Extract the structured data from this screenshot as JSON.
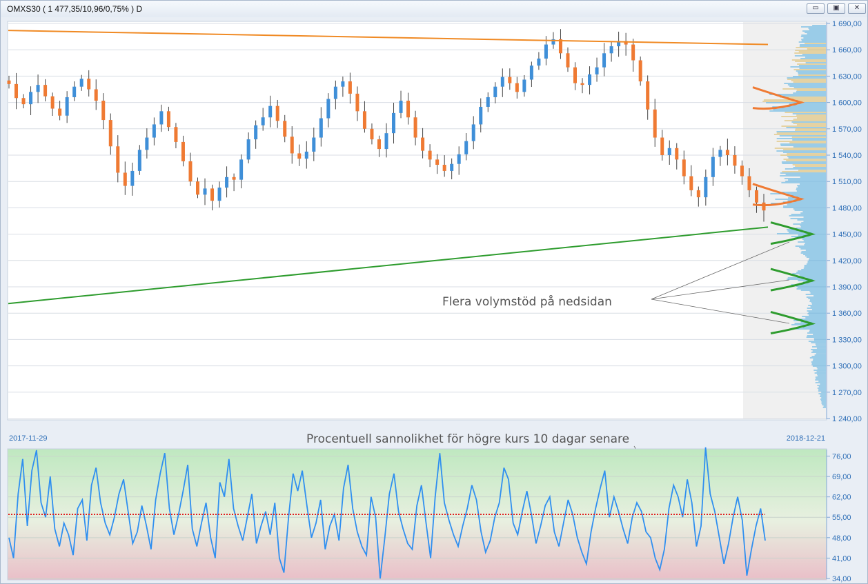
{
  "window": {
    "title": "OMXS30 ( 1 477,35/10,96/0,75% )  D",
    "buttons": [
      {
        "name": "minimize",
        "glyph": "▭"
      },
      {
        "name": "maximize",
        "glyph": "▣"
      },
      {
        "name": "close",
        "glyph": "✕"
      }
    ]
  },
  "colors": {
    "up": "#3f8fd8",
    "down": "#ef7a33",
    "resistance": "#f08a24",
    "support": "#2e9c2e",
    "indicator": "#2f8ff0",
    "threshold": "#e02020",
    "axis": "#2f6fb7"
  },
  "dates": {
    "start": "2017-11-29",
    "end": "2018-12-21"
  },
  "annotations": {
    "volume_support": "Flera volymstöd på nedsidan",
    "probability": "Procentuell sannolikhet för högre kurs 10 dagar senare"
  },
  "chart_data": [
    {
      "type": "candlestick",
      "y_ticks": [
        "1 690,00",
        "1 660,00",
        "1 630,00",
        "1 600,00",
        "1 570,00",
        "1 540,00",
        "1 510,00",
        "1 480,00",
        "1 450,00",
        "1 420,00",
        "1 390,00",
        "1 360,00",
        "1 330,00",
        "1 300,00",
        "1 270,00",
        "1 240,00"
      ],
      "ylim": [
        1240,
        1690
      ],
      "x_range": [
        "2017-11-29",
        "2018-12-21"
      ],
      "grid": true,
      "closes": [
        1621,
        1605,
        1598,
        1612,
        1620,
        1607,
        1593,
        1585,
        1606,
        1618,
        1627,
        1615,
        1602,
        1580,
        1550,
        1520,
        1505,
        1522,
        1546,
        1560,
        1575,
        1590,
        1572,
        1555,
        1533,
        1510,
        1495,
        1502,
        1488,
        1503,
        1515,
        1512,
        1535,
        1558,
        1574,
        1583,
        1596,
        1579,
        1561,
        1542,
        1536,
        1544,
        1560,
        1582,
        1604,
        1618,
        1624,
        1610,
        1590,
        1570,
        1558,
        1547,
        1565,
        1588,
        1602,
        1583,
        1560,
        1545,
        1535,
        1529,
        1522,
        1530,
        1541,
        1556,
        1575,
        1595,
        1606,
        1618,
        1629,
        1622,
        1612,
        1626,
        1642,
        1650,
        1666,
        1672,
        1656,
        1640,
        1622,
        1620,
        1632,
        1640,
        1656,
        1664,
        1670,
        1666,
        1648,
        1624,
        1592,
        1560,
        1540,
        1548,
        1535,
        1516,
        1500,
        1492,
        1515,
        1538,
        1546,
        1540,
        1528,
        1516,
        1500,
        1486,
        1477
      ],
      "resistance_line": {
        "from": 1682,
        "to": 1666
      },
      "support_line": {
        "from": 1371,
        "to": 1458
      },
      "volume_profile": {
        "resistance_nodes": [
          1600,
          1490
        ],
        "support_nodes": [
          1450,
          1397,
          1348
        ]
      }
    },
    {
      "type": "line",
      "y_ticks": [
        "76,00",
        "69,00",
        "62,00",
        "55,00",
        "48,00",
        "41,00",
        "34,00"
      ],
      "ylim": [
        34,
        78
      ],
      "threshold": 56,
      "values": [
        48,
        41,
        63,
        75,
        52,
        71,
        78,
        60,
        55,
        69,
        51,
        45,
        53,
        49,
        42,
        58,
        61,
        47,
        66,
        72,
        60,
        53,
        49,
        55,
        63,
        68,
        57,
        46,
        50,
        59,
        52,
        44,
        61,
        70,
        77,
        58,
        49,
        56,
        64,
        73,
        51,
        45,
        53,
        60,
        48,
        41,
        67,
        62,
        75,
        58,
        52,
        47,
        55,
        63,
        46,
        52,
        57,
        49,
        60,
        41,
        36,
        55,
        70,
        64,
        71,
        59,
        48,
        53,
        61,
        44,
        52,
        56,
        47,
        65,
        73,
        58,
        50,
        45,
        42,
        62,
        55,
        34,
        48,
        63,
        70,
        57,
        51,
        46,
        44,
        59,
        66,
        53,
        41,
        62,
        77,
        60,
        54,
        49,
        45,
        52,
        58,
        66,
        61,
        50,
        43,
        47,
        55,
        60,
        72,
        68,
        53,
        49,
        57,
        64,
        56,
        46,
        52,
        59,
        62,
        50,
        45,
        53,
        61,
        56,
        48,
        43,
        39,
        50,
        58,
        65,
        71,
        55,
        62,
        57,
        51,
        46,
        55,
        60,
        57,
        50,
        48,
        41,
        37,
        44,
        58,
        66,
        62,
        55,
        68,
        60,
        45,
        52,
        79,
        63,
        57,
        48,
        39,
        46,
        55,
        62,
        54,
        35,
        44,
        52,
        58,
        47
      ]
    }
  ]
}
